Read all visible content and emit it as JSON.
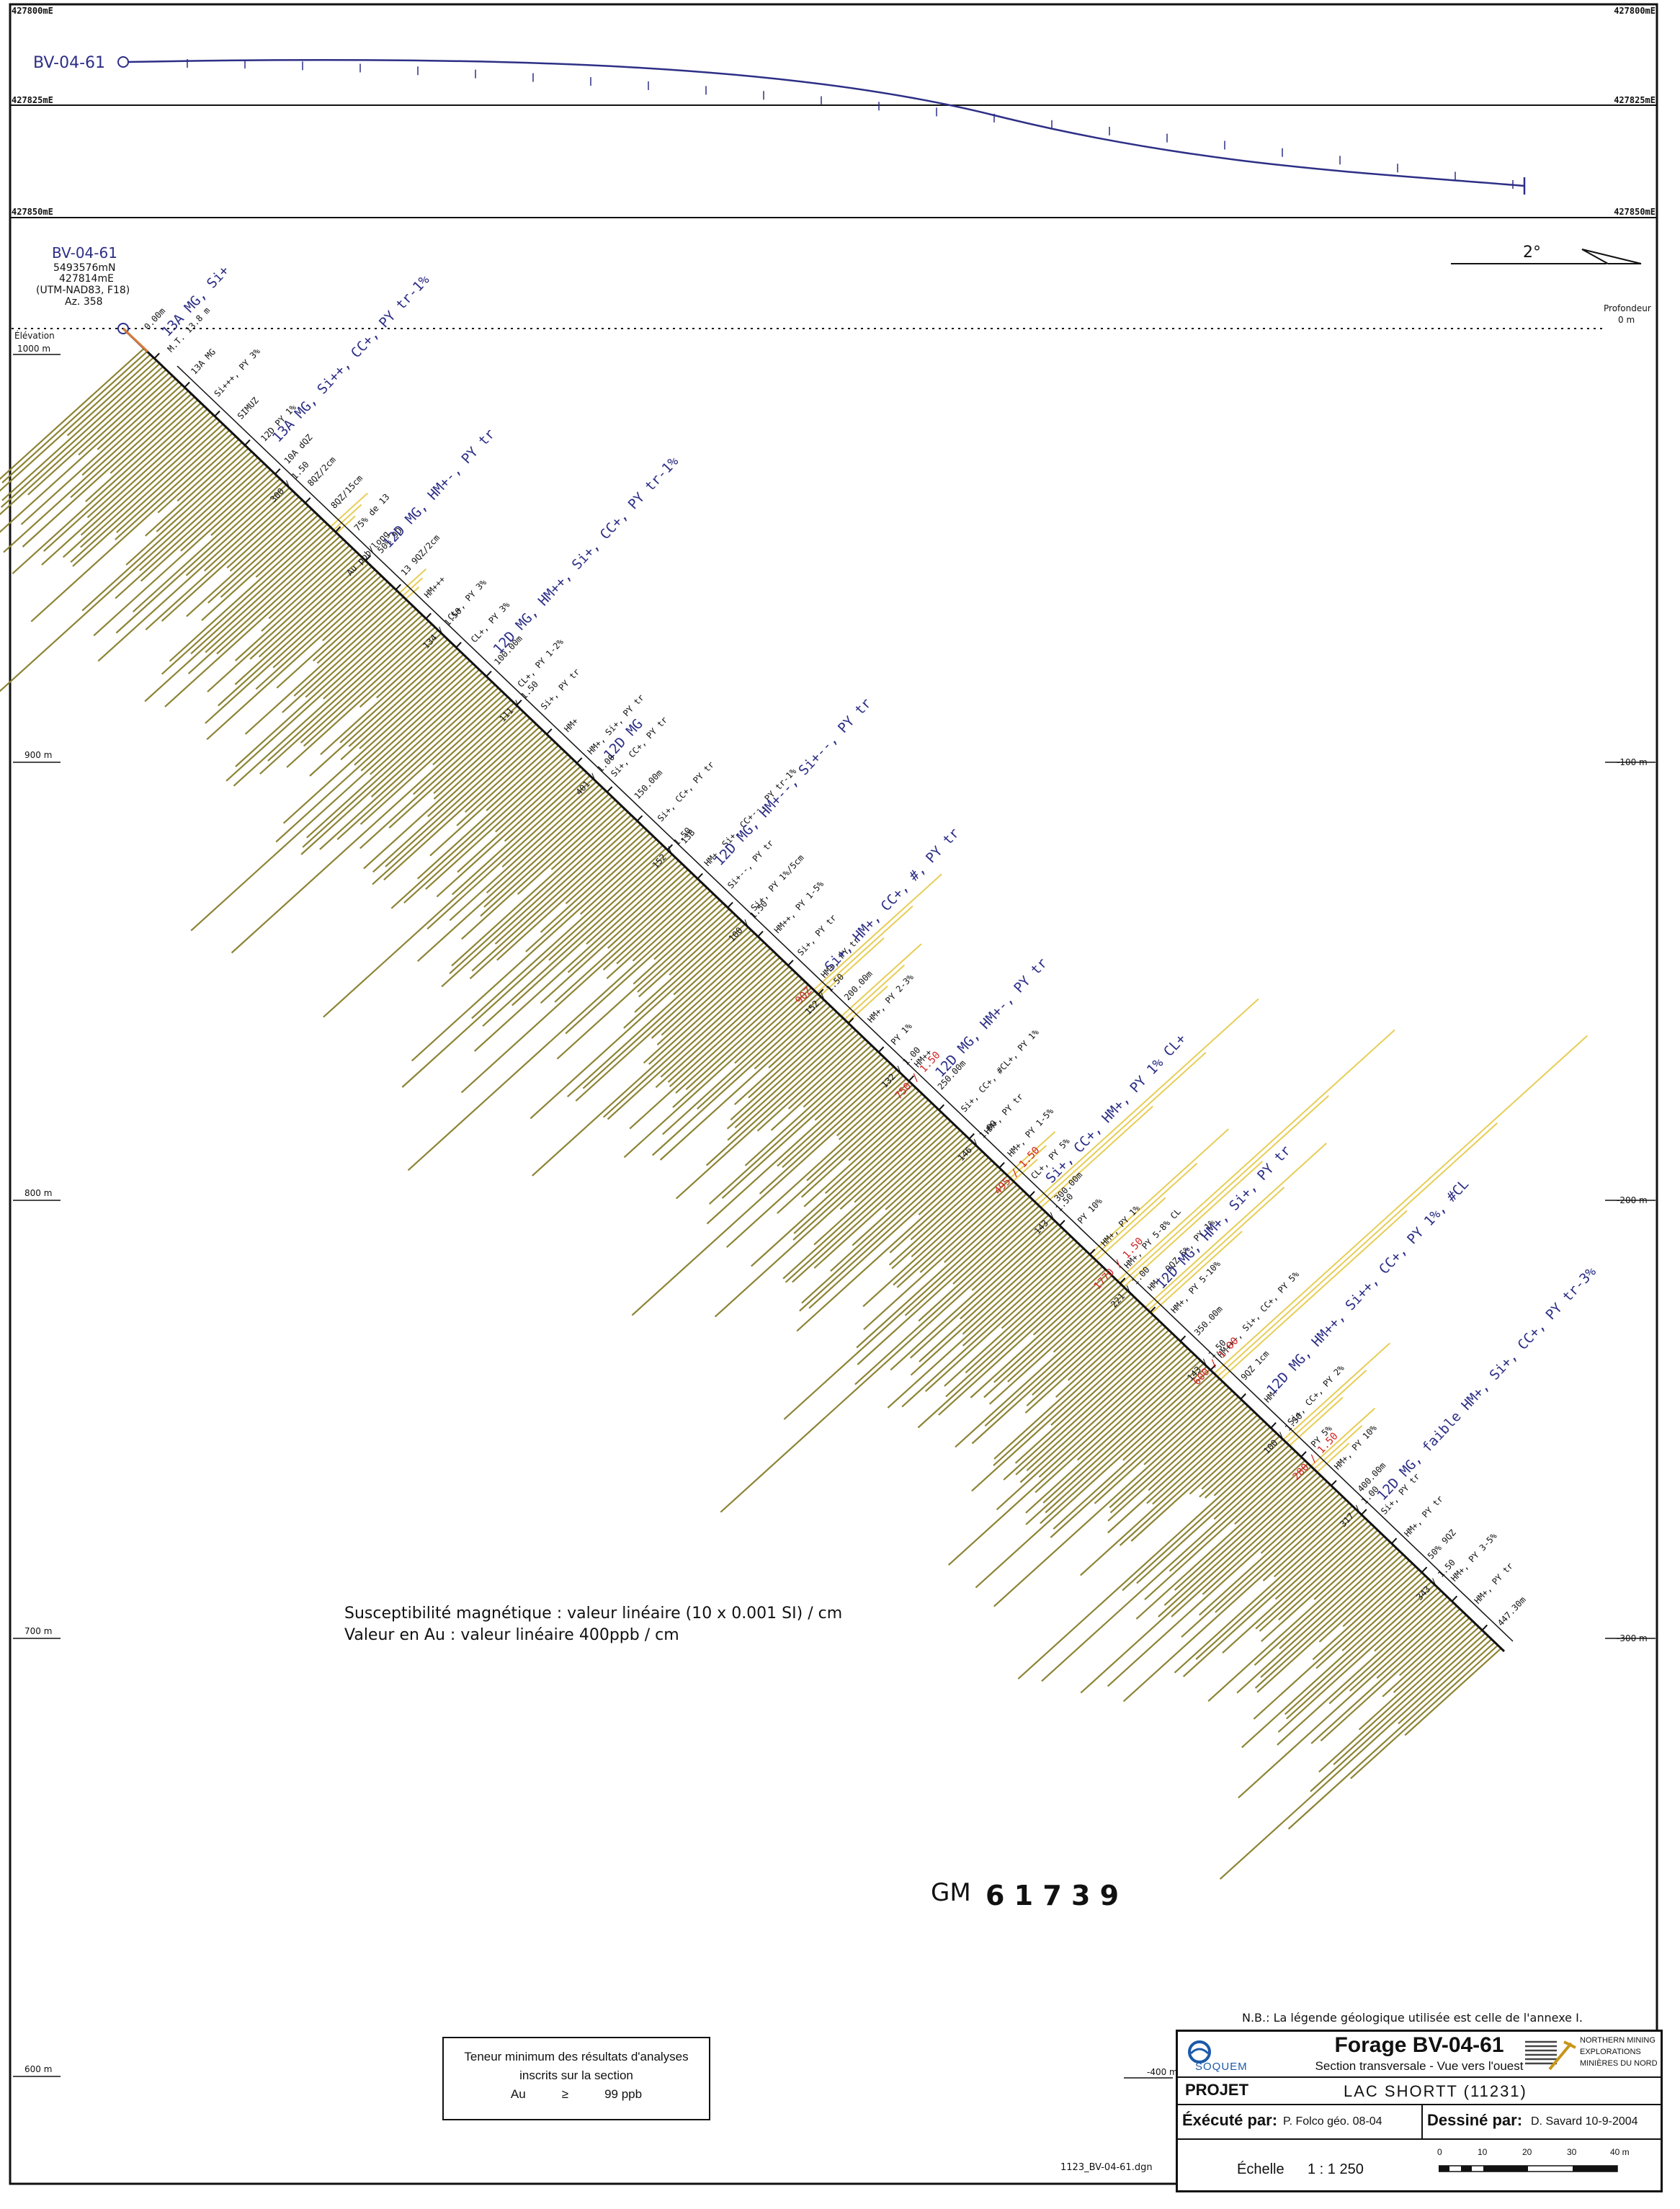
{
  "plan_view": {
    "hole_label": "BV-04-61",
    "easting_labels": [
      "427800mE",
      "427825mE",
      "427850mE"
    ]
  },
  "collar": {
    "hole_id": "BV-04-61",
    "northing": "5493576mN",
    "easting": "427814mE",
    "datum": "(UTM-NAD83, F18)",
    "azimuth": "Az. 358"
  },
  "dip_indicator": "2°",
  "elevation_axis": {
    "title": "Élévation",
    "labels": [
      "1000 m",
      "900 m",
      "800 m",
      "700 m",
      "600 m"
    ]
  },
  "depth_axis": {
    "title": "Profondeur",
    "labels": [
      "0 m",
      "-100 m",
      "-200 m",
      "-300 m",
      "-400 m"
    ]
  },
  "colors": {
    "susceptibility": "#8d8435",
    "gold": "#e7cd56",
    "blue_text": "#2d2f86",
    "red_text": "#d22020"
  },
  "annotations": {
    "black": [
      "0.00m",
      "M.T. 13.8 m",
      "13A MG",
      "Si+++, PY 3%",
      "SIMUZ",
      "12D PY 1%",
      "10A dQZ",
      "8QZ/2cm",
      "8QZ/15cm",
      "75% de 13",
      "50% 9D",
      "13 9QZ/2cm",
      "HM+++",
      "CL+, PY 3%",
      "CL+, PY 3%",
      "100.00m",
      "CL+, PY 1-2%",
      "Si+, PY tr",
      "HM+",
      "HM+, Si+, PY tr",
      "Si+, CC+, PY tr",
      "150.00m",
      "Si+, CC+, PY tr",
      "13B",
      "HM+, Si+, CC+--, PY tr-1%",
      "Si+--, PY tr",
      "Si+, PY 1%/5cm",
      "HM++, PY 1-5%",
      "Si+, PY tr",
      "HM+, PY tr",
      "200.00m",
      "HM+, PY 2-3%",
      "PY 1%",
      "HM++",
      "250.00m",
      "Si+, CC+, #CL+, PY 1%",
      "HM+, PY tr",
      "HM+, PY 1-5%",
      "CL+, PY 5%",
      "300.00m",
      "PY 10%",
      "HM+, PY 1%",
      "HM+, PY 5-8% CL",
      "HM+, 9QZ 5%, PY 1%",
      "HM+, PY 5-10%",
      "350.00m",
      "HM+++, Si+, CC+, PY 5%",
      "9QZ 1cm",
      "HM+",
      "Si+, CC+, PY 2%",
      "PY 5%",
      "HM+, PY 10%",
      "400.00m",
      "Si+, PY tr",
      "HM+, PY tr",
      "50% 9QZ",
      "HM+, PY 3-5%",
      "HM+, PY tr",
      "447.30m"
    ],
    "blue": [
      "13A MG, Si+",
      "13A MG, Si++, CC+, PY tr-1%",
      "12D MG, HM+-, PY tr",
      "12D MG, HM++, Si+, CC+, PY tr-1%",
      "12D MG",
      "12D MG, HM+--, Si+--, PY tr",
      "Si+, HM+, CC+, #, PY tr",
      "12D MG, HM+-, PY tr",
      "Si+, CC+, HM+, PY 1% CL+",
      "12D MG, HM+, Si+, PY tr",
      "12D MG, HM++, Si++, CC+, PY 1%, #CL",
      "12D MG, faible HM+, Si+, CC+, PY tr-3%"
    ],
    "red": [
      "9QZ",
      "750 / 1.50",
      "495 / 1.50",
      "1770 / 1.50",
      "600 / 1.00",
      "280 / 1.50"
    ],
    "assays": [
      "300 / 1.50",
      "Au ppb/long",
      "134 / 1.50",
      "111 / 1.50",
      "401 / 1.00",
      "152 / 1.50",
      "100 / 1.50",
      "152 / 1.50",
      "132 / 1.00",
      "146 / 1.00",
      "143 / 1.50",
      "221 / 1.00",
      "143 / 1.50",
      "100 / 1.50",
      "317 / 1.00",
      "343 / 1.50"
    ]
  },
  "notes": {
    "line1": "Susceptibilité magnétique : valeur linéaire (10 x 0.001 SI) / cm",
    "line2": "Valeur en Au : valeur linéaire 400ppb / cm"
  },
  "stamp": {
    "prefix": "GM",
    "number": "6 1 7 3 9"
  },
  "legend_note": "N.B.: La légende géologique utilisée est celle de l'annexe I.",
  "min_box": {
    "line1": "Teneur minimum des résultats d'analyses",
    "line2": "inscrits sur la section",
    "element": "Au",
    "operator": "≥",
    "value": "99 ppb"
  },
  "title_block": {
    "company_left": "SOQUEM",
    "title": "Forage BV-04-61",
    "subtitle": "Section transversale - Vue vers l'ouest",
    "company_right": [
      "NORTHERN MINING",
      "EXPLORATIONS",
      "MINIÈRES DU NORD"
    ],
    "projet_label": "PROJET",
    "projet_value": "LAC SHORTT (11231)",
    "execute_label": "Éxécuté par:",
    "execute_value": "P. Folco géo.   08-04",
    "dessine_label": "Dessiné par:",
    "dessine_value": "D. Savard   10-9-2004",
    "echelle_label": "Échelle",
    "echelle_value": "1 : 1 250",
    "scale_ticks": [
      "0",
      "10",
      "20",
      "30",
      "40 m"
    ]
  },
  "filename": "1123_BV-04-61.dgn"
}
